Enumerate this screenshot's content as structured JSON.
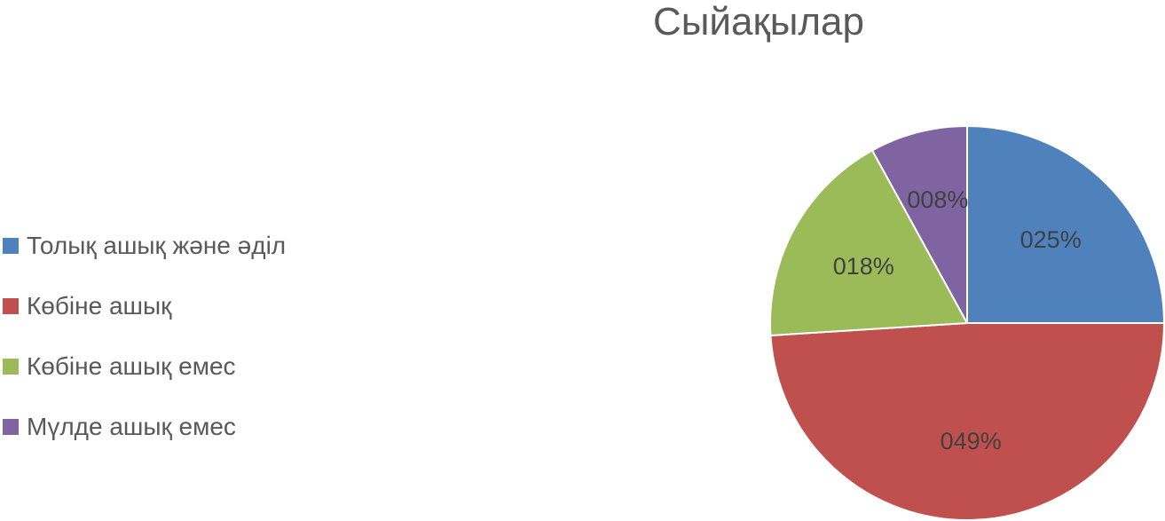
{
  "chart_data": {
    "type": "pie",
    "title": "Сыйақылар",
    "categories": [
      "Толық ашық және әділ",
      "Көбіне ашық",
      "Көбіне ашық емес",
      "Мүлде ашық емес"
    ],
    "values": [
      25,
      49,
      18,
      8
    ],
    "data_labels": [
      "025%",
      "049%",
      "018%",
      "008%"
    ],
    "colors": [
      "#4F81BD",
      "#C0504D",
      "#9BBB59",
      "#8064A2"
    ],
    "legend_position": "left",
    "start_angle_deg": 0,
    "direction": "clockwise"
  }
}
